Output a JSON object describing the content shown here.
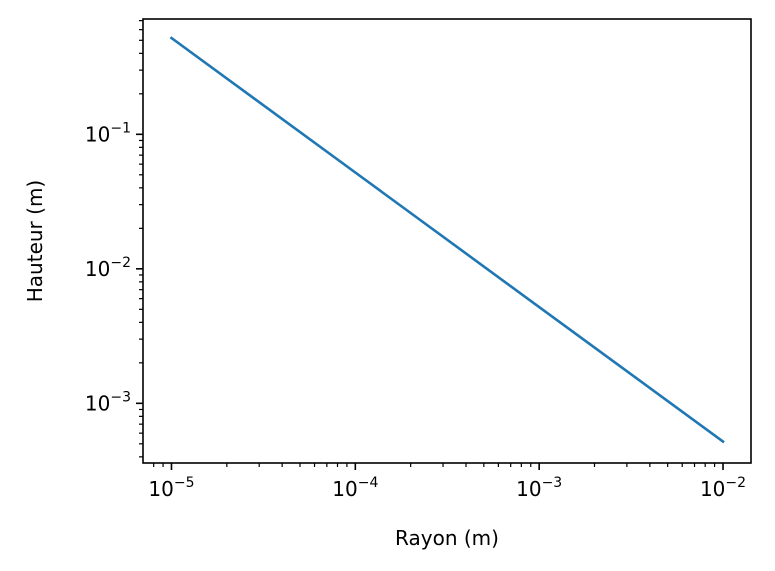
{
  "chart_data": {
    "type": "line",
    "title": "",
    "xlabel": "Rayon (m)",
    "ylabel": "Hauteur (m)",
    "xscale": "log",
    "yscale": "log",
    "xlim": [
      7e-06,
      0.0142
    ],
    "ylim": [
      0.00036,
      0.72
    ],
    "xticks": [
      {
        "value": 1e-05,
        "base": "10",
        "exp": "−5"
      },
      {
        "value": 0.0001,
        "base": "10",
        "exp": "−4"
      },
      {
        "value": 0.001,
        "base": "10",
        "exp": "−3"
      },
      {
        "value": 0.01,
        "base": "10",
        "exp": "−2"
      }
    ],
    "yticks": [
      {
        "value": 0.001,
        "base": "10",
        "exp": "−3"
      },
      {
        "value": 0.01,
        "base": "10",
        "exp": "−2"
      },
      {
        "value": 0.1,
        "base": "10",
        "exp": "−1"
      }
    ],
    "grid": false,
    "legend": null,
    "series": [
      {
        "color": "#1f77b4",
        "x": [
          1e-05,
          0.0001,
          0.001,
          0.01
        ],
        "y": [
          0.52,
          0.052,
          0.0052,
          0.00052
        ]
      }
    ]
  }
}
